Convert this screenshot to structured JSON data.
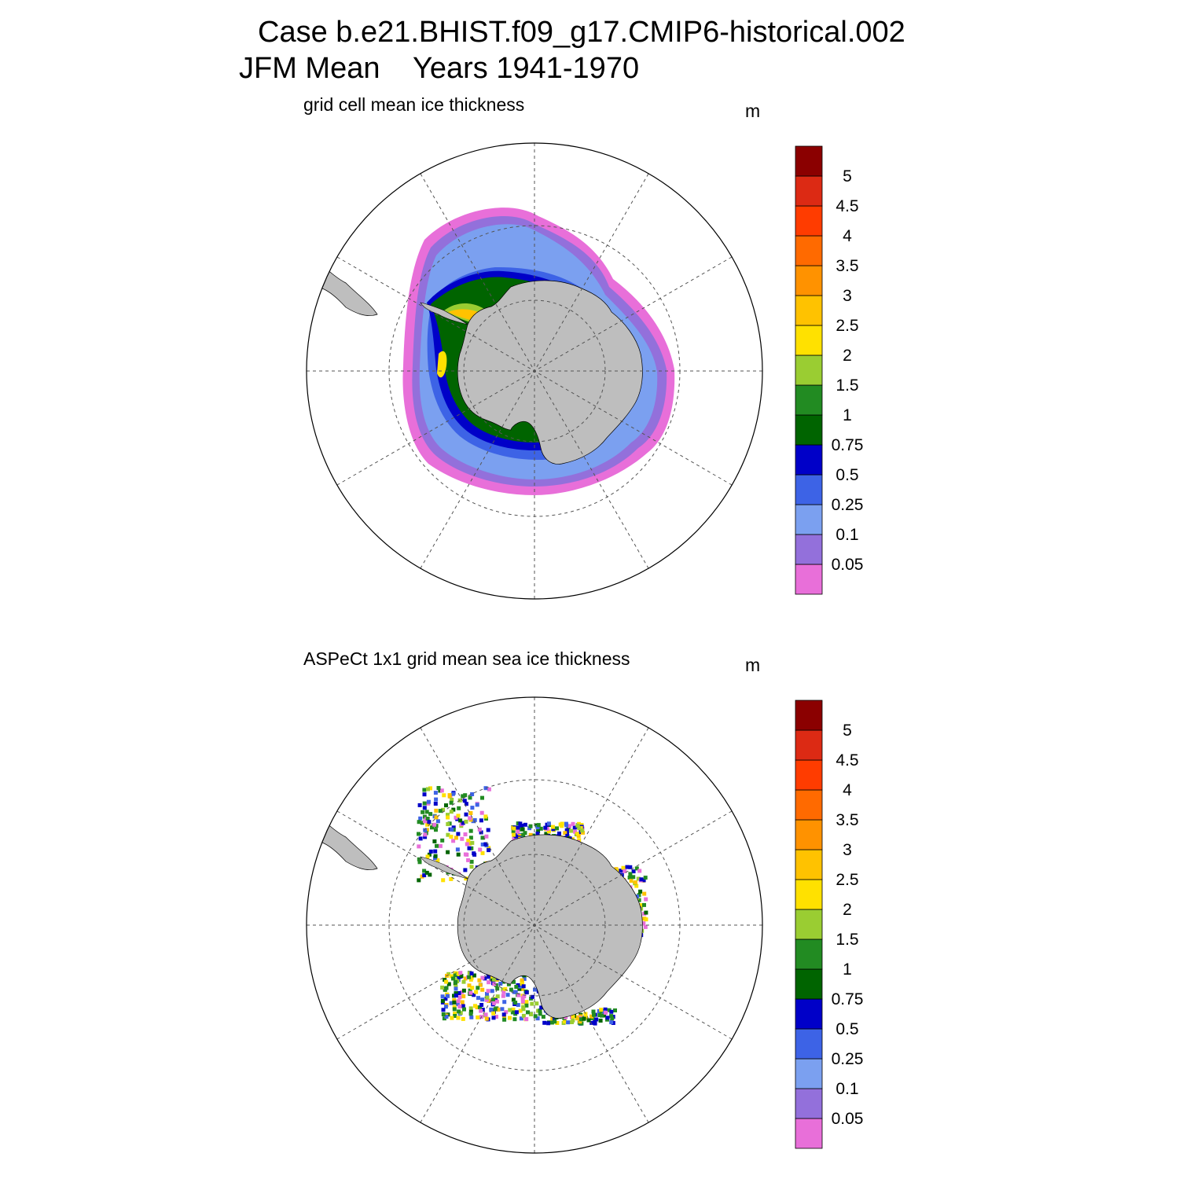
{
  "title": {
    "line1": "Case b.e21.BHIST.f09_g17.CMIP6-historical.002",
    "line2": "JFM Mean    Years 1941-1970"
  },
  "panels": [
    {
      "subtitle": "grid cell mean ice thickness",
      "unit": "m",
      "kind": "model"
    },
    {
      "subtitle": "ASPeCt 1x1 grid mean sea ice thickness",
      "unit": "m",
      "kind": "obs"
    }
  ],
  "colorbar": {
    "colors": [
      "#e86fd9",
      "#9370db",
      "#7ba0f0",
      "#3d63e6",
      "#0000c8",
      "#006400",
      "#228b22",
      "#9acd32",
      "#ffe100",
      "#ffc200",
      "#ff9200",
      "#ff6a00",
      "#ff3c00",
      "#dc2a14",
      "#8b0000"
    ],
    "labels": [
      "0.05",
      "0.1",
      "0.25",
      "0.5",
      "0.75",
      "1",
      "1.5",
      "2",
      "2.5",
      "3",
      "3.5",
      "4",
      "4.5",
      "5"
    ]
  },
  "colors": {
    "land": "#bebebe",
    "grid": "#555555"
  }
}
